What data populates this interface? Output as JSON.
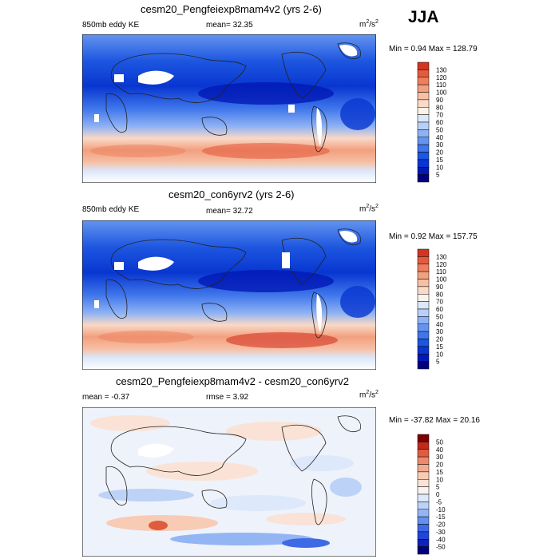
{
  "season": "JJA",
  "colors": {
    "abs_scale": [
      "#00007f",
      "#0319b5",
      "#0836d0",
      "#1d56e0",
      "#3f76eb",
      "#6494f0",
      "#8eb2f4",
      "#b8cff8",
      "#dbe7fa",
      "#fbf2e9",
      "#f9d9c7",
      "#f7bfa4",
      "#f2a07f",
      "#ec7f5e",
      "#e45c3e",
      "#d43423",
      "#b3160f",
      "#7f0000"
    ],
    "diff_scale": [
      "#00007f",
      "#0d22b8",
      "#2145d8",
      "#3e6ae6",
      "#6690ee",
      "#93b5f4",
      "#bcd2f7",
      "#dde9fa",
      "#f7f3ef",
      "#fae3d6",
      "#f8cbb5",
      "#f3ab8f",
      "#ec8a6d",
      "#df5c3f",
      "#c12a1c",
      "#7f0000"
    ]
  },
  "chart_data": [
    {
      "type": "heatmap",
      "title": "cesm20_Pengfeiexp8mam4v2 (yrs 2-6)",
      "left_label": "850mb eddy KE",
      "center_label": "mean=  32.35",
      "units_base": "m",
      "units_exp": "2",
      "units_den_base": "s",
      "units_den_exp": "2",
      "min_max": "Min =   0.94 Max = 128.79",
      "levels": [
        "130",
        "120",
        "110",
        "100",
        "90",
        "80",
        "70",
        "60",
        "50",
        "40",
        "30",
        "20",
        "15",
        "10",
        "5"
      ],
      "mean": 32.35,
      "min": 0.94,
      "max": 128.79
    },
    {
      "type": "heatmap",
      "title": "cesm20_con6yrv2 (yrs 2-6)",
      "left_label": "850mb eddy KE",
      "center_label": "mean=  32.72",
      "units_base": "m",
      "units_exp": "2",
      "units_den_base": "s",
      "units_den_exp": "2",
      "min_max": "Min =   0.92 Max = 157.75",
      "levels": [
        "130",
        "120",
        "110",
        "100",
        "90",
        "80",
        "70",
        "60",
        "50",
        "40",
        "30",
        "20",
        "15",
        "10",
        "5"
      ],
      "mean": 32.72,
      "min": 0.92,
      "max": 157.75
    },
    {
      "type": "heatmap",
      "title": "cesm20_Pengfeiexp8mam4v2 - cesm20_con6yrv2",
      "left_label": "mean =  -0.37",
      "center_label": "rmse =   3.92",
      "units_base": "m",
      "units_exp": "2",
      "units_den_base": "s",
      "units_den_exp": "2",
      "min_max": "Min = -37.82 Max =  20.16",
      "levels": [
        "50",
        "40",
        "30",
        "20",
        "15",
        "10",
        "5",
        "0",
        "-5",
        "-10",
        "-15",
        "-20",
        "-30",
        "-40",
        "-50"
      ],
      "mean": -0.37,
      "rmse": 3.92,
      "min": -37.82,
      "max": 20.16
    }
  ]
}
